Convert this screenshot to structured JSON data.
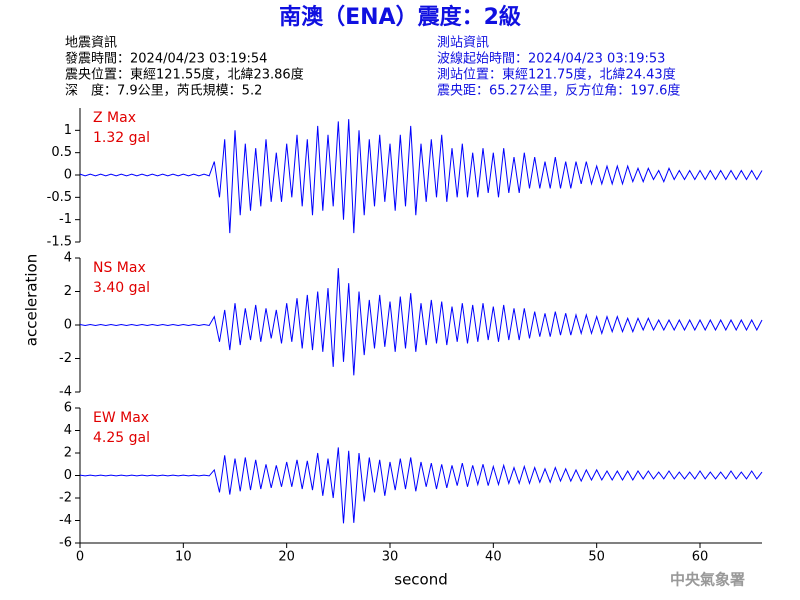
{
  "title": "南澳（ENA）震度：2級",
  "event_info": [
    "地震資訊",
    "發震時間：2024/04/23 03:19:54",
    "震央位置：東經121.55度，北緯23.86度",
    "深　度：7.9公里，芮氏規模：5.2"
  ],
  "station_info": [
    "測站資訊",
    "波線起始時間：2024/04/23 03:19:53",
    "測站位置：東經121.75度，北緯24.43度",
    "震央距：65.27公里，反方位角：197.6度"
  ],
  "agency": "中央氣象署",
  "chart_data": [
    {
      "type": "line",
      "label": "Z Max",
      "max_label": "1.32 gal",
      "label_color": "#e00000",
      "xlim": [
        0,
        66
      ],
      "ylim": [
        -1.5,
        1.5
      ],
      "yticks": [
        -1.5,
        -1,
        -0.5,
        0,
        0.5,
        1
      ],
      "x": [
        0,
        0.5,
        1,
        1.5,
        2,
        2.5,
        3,
        3.5,
        4,
        4.5,
        5,
        5.5,
        6,
        6.5,
        7,
        7.5,
        8,
        8.5,
        9,
        9.5,
        10,
        10.5,
        11,
        11.5,
        12,
        12.5,
        13,
        13.5,
        14,
        14.5,
        15,
        15.5,
        16,
        16.5,
        17,
        17.5,
        18,
        18.5,
        19,
        19.5,
        20,
        20.5,
        21,
        21.5,
        22,
        22.5,
        23,
        23.5,
        24,
        24.5,
        25,
        25.5,
        26,
        26.5,
        27,
        27.5,
        28,
        28.5,
        29,
        29.5,
        30,
        30.5,
        31,
        31.5,
        32,
        32.5,
        33,
        33.5,
        34,
        34.5,
        35,
        35.5,
        36,
        36.5,
        37,
        37.5,
        38,
        38.5,
        39,
        39.5,
        40,
        40.5,
        41,
        41.5,
        42,
        42.5,
        43,
        43.5,
        44,
        44.5,
        45,
        45.5,
        46,
        46.5,
        47,
        47.5,
        48,
        48.5,
        49,
        49.5,
        50,
        50.5,
        51,
        51.5,
        52,
        52.5,
        53,
        53.5,
        54,
        54.5,
        55,
        55.5,
        56,
        56.5,
        57,
        57.5,
        58,
        58.5,
        59,
        59.5,
        60,
        60.5,
        61,
        61.5,
        62,
        62.5,
        63,
        63.5,
        64,
        64.5,
        65,
        65.5,
        66
      ],
      "series": [
        {
          "color": "#0000ff",
          "values": [
            0.02,
            -0.02,
            0.02,
            -0.02,
            0.02,
            -0.02,
            0.02,
            -0.02,
            0.02,
            -0.02,
            0.02,
            -0.02,
            0.02,
            -0.02,
            0.02,
            -0.02,
            0.02,
            -0.02,
            0.02,
            -0.02,
            0.02,
            -0.02,
            0.02,
            -0.02,
            0.02,
            -0.02,
            0.3,
            -0.5,
            0.8,
            -1.3,
            1.0,
            -0.9,
            0.7,
            -0.8,
            0.6,
            -0.7,
            0.8,
            -0.6,
            0.5,
            -0.6,
            0.7,
            -0.5,
            0.9,
            -0.7,
            0.8,
            -0.9,
            1.1,
            -0.8,
            0.9,
            -0.7,
            1.2,
            -1.0,
            1.25,
            -1.3,
            1.0,
            -0.9,
            0.8,
            -0.7,
            0.9,
            -0.6,
            0.7,
            -0.8,
            0.9,
            -0.7,
            1.1,
            -0.9,
            0.7,
            -0.6,
            0.8,
            -0.5,
            0.9,
            -0.6,
            0.6,
            -0.5,
            0.7,
            -0.5,
            0.5,
            -0.5,
            0.6,
            -0.4,
            0.5,
            -0.5,
            0.6,
            -0.4,
            0.4,
            -0.4,
            0.5,
            -0.3,
            0.4,
            -0.3,
            0.3,
            -0.3,
            0.4,
            -0.3,
            0.3,
            -0.3,
            0.3,
            -0.2,
            0.3,
            -0.2,
            0.2,
            -0.2,
            0.2,
            -0.2,
            0.2,
            -0.2,
            0.2,
            -0.15,
            0.15,
            -0.15,
            0.15,
            -0.1,
            0.1,
            -0.15,
            0.15,
            -0.1,
            0.1,
            -0.1,
            0.1,
            -0.1,
            0.1,
            -0.1,
            0.1,
            -0.1,
            0.1,
            -0.1,
            0.1,
            -0.1,
            0.1,
            -0.1,
            0.1,
            -0.1,
            0.1
          ]
        }
      ]
    },
    {
      "type": "line",
      "label": "NS Max",
      "max_label": "3.40 gal",
      "label_color": "#e00000",
      "y_label": "acceleration",
      "xlim": [
        0,
        66
      ],
      "ylim": [
        -4,
        4
      ],
      "yticks": [
        -4,
        -2,
        0,
        2,
        4
      ],
      "x": [
        0,
        0.5,
        1,
        1.5,
        2,
        2.5,
        3,
        3.5,
        4,
        4.5,
        5,
        5.5,
        6,
        6.5,
        7,
        7.5,
        8,
        8.5,
        9,
        9.5,
        10,
        10.5,
        11,
        11.5,
        12,
        12.5,
        13,
        13.5,
        14,
        14.5,
        15,
        15.5,
        16,
        16.5,
        17,
        17.5,
        18,
        18.5,
        19,
        19.5,
        20,
        20.5,
        21,
        21.5,
        22,
        22.5,
        23,
        23.5,
        24,
        24.5,
        25,
        25.5,
        26,
        26.5,
        27,
        27.5,
        28,
        28.5,
        29,
        29.5,
        30,
        30.5,
        31,
        31.5,
        32,
        32.5,
        33,
        33.5,
        34,
        34.5,
        35,
        35.5,
        36,
        36.5,
        37,
        37.5,
        38,
        38.5,
        39,
        39.5,
        40,
        40.5,
        41,
        41.5,
        42,
        42.5,
        43,
        43.5,
        44,
        44.5,
        45,
        45.5,
        46,
        46.5,
        47,
        47.5,
        48,
        48.5,
        49,
        49.5,
        50,
        50.5,
        51,
        51.5,
        52,
        52.5,
        53,
        53.5,
        54,
        54.5,
        55,
        55.5,
        56,
        56.5,
        57,
        57.5,
        58,
        58.5,
        59,
        59.5,
        60,
        60.5,
        61,
        61.5,
        62,
        62.5,
        63,
        63.5,
        64,
        64.5,
        65,
        65.5,
        66
      ],
      "series": [
        {
          "color": "#0000ff",
          "values": [
            0.03,
            -0.03,
            0.03,
            -0.03,
            0.03,
            -0.03,
            0.03,
            -0.03,
            0.03,
            -0.03,
            0.03,
            -0.03,
            0.03,
            -0.03,
            0.03,
            -0.03,
            0.03,
            -0.03,
            0.03,
            -0.03,
            0.03,
            -0.03,
            0.03,
            -0.03,
            0.03,
            -0.03,
            0.5,
            -1.0,
            0.9,
            -1.5,
            1.3,
            -1.2,
            1.0,
            -0.9,
            1.2,
            -1.0,
            1.0,
            -0.8,
            0.9,
            -1.1,
            1.3,
            -1.0,
            1.6,
            -1.4,
            1.8,
            -1.5,
            2.0,
            -1.6,
            2.2,
            -2.5,
            3.4,
            -2.2,
            2.5,
            -3.0,
            2.0,
            -1.8,
            1.5,
            -1.4,
            1.8,
            -1.3,
            1.4,
            -1.6,
            1.7,
            -1.4,
            1.9,
            -1.6,
            1.3,
            -1.2,
            1.5,
            -1.1,
            1.4,
            -1.2,
            1.1,
            -1.0,
            1.3,
            -1.1,
            1.2,
            -1.0,
            1.3,
            -0.9,
            1.1,
            -1.0,
            1.2,
            -0.9,
            1.0,
            -0.9,
            1.0,
            -0.8,
            0.8,
            -0.7,
            0.7,
            -0.7,
            0.8,
            -0.6,
            0.7,
            -0.6,
            0.6,
            -0.5,
            0.6,
            -0.5,
            0.5,
            -0.5,
            0.5,
            -0.4,
            0.5,
            -0.4,
            0.4,
            -0.4,
            0.4,
            -0.3,
            0.4,
            -0.3,
            0.3,
            -0.3,
            0.3,
            -0.3,
            0.3,
            -0.3,
            0.3,
            -0.3,
            0.3,
            -0.3,
            0.3,
            -0.3,
            0.3,
            -0.3,
            0.3,
            -0.3,
            0.3,
            -0.3,
            0.3,
            -0.3,
            0.3
          ]
        }
      ]
    },
    {
      "type": "line",
      "label": "EW Max",
      "max_label": "4.25 gal",
      "label_color": "#e00000",
      "x_label": "second",
      "xlim": [
        0,
        66
      ],
      "xticks": [
        0,
        10,
        20,
        30,
        40,
        50,
        60
      ],
      "ylim": [
        -6,
        6
      ],
      "yticks": [
        -6,
        -4,
        -2,
        0,
        2,
        4,
        6
      ],
      "x": [
        0,
        0.5,
        1,
        1.5,
        2,
        2.5,
        3,
        3.5,
        4,
        4.5,
        5,
        5.5,
        6,
        6.5,
        7,
        7.5,
        8,
        8.5,
        9,
        9.5,
        10,
        10.5,
        11,
        11.5,
        12,
        12.5,
        13,
        13.5,
        14,
        14.5,
        15,
        15.5,
        16,
        16.5,
        17,
        17.5,
        18,
        18.5,
        19,
        19.5,
        20,
        20.5,
        21,
        21.5,
        22,
        22.5,
        23,
        23.5,
        24,
        24.5,
        25,
        25.5,
        26,
        26.5,
        27,
        27.5,
        28,
        28.5,
        29,
        29.5,
        30,
        30.5,
        31,
        31.5,
        32,
        32.5,
        33,
        33.5,
        34,
        34.5,
        35,
        35.5,
        36,
        36.5,
        37,
        37.5,
        38,
        38.5,
        39,
        39.5,
        40,
        40.5,
        41,
        41.5,
        42,
        42.5,
        43,
        43.5,
        44,
        44.5,
        45,
        45.5,
        46,
        46.5,
        47,
        47.5,
        48,
        48.5,
        49,
        49.5,
        50,
        50.5,
        51,
        51.5,
        52,
        52.5,
        53,
        53.5,
        54,
        54.5,
        55,
        55.5,
        56,
        56.5,
        57,
        57.5,
        58,
        58.5,
        59,
        59.5,
        60,
        60.5,
        61,
        61.5,
        62,
        62.5,
        63,
        63.5,
        64,
        64.5,
        65,
        65.5,
        66
      ],
      "series": [
        {
          "color": "#0000ff",
          "values": [
            0.04,
            -0.04,
            0.04,
            -0.04,
            0.04,
            -0.04,
            0.04,
            -0.04,
            0.04,
            -0.04,
            0.04,
            -0.04,
            0.04,
            -0.04,
            0.04,
            -0.04,
            0.04,
            -0.04,
            0.04,
            -0.04,
            0.04,
            -0.04,
            0.04,
            -0.04,
            0.04,
            -0.04,
            0.5,
            -1.5,
            1.8,
            -1.7,
            1.5,
            -1.4,
            1.6,
            -1.3,
            1.4,
            -1.2,
            1.0,
            -1.1,
            0.9,
            -1.0,
            1.2,
            -1.0,
            1.4,
            -1.2,
            1.3,
            -1.3,
            2.0,
            -1.8,
            1.5,
            -2.0,
            2.5,
            -4.25,
            2.2,
            -4.2,
            2.0,
            -2.3,
            1.6,
            -1.5,
            1.4,
            -1.8,
            1.2,
            -1.3,
            1.5,
            -1.2,
            1.6,
            -1.4,
            1.2,
            -1.0,
            1.1,
            -1.2,
            1.0,
            -1.1,
            0.9,
            -0.9,
            1.1,
            -1.0,
            0.9,
            -0.8,
            1.0,
            -0.9,
            0.8,
            -0.8,
            0.9,
            -0.7,
            0.7,
            -0.7,
            0.8,
            -0.7,
            0.7,
            -0.6,
            0.6,
            -0.6,
            0.7,
            -0.5,
            0.6,
            -0.5,
            0.5,
            -0.5,
            0.5,
            -0.4,
            0.5,
            -0.4,
            0.4,
            -0.4,
            0.4,
            -0.4,
            0.4,
            -0.4,
            0.4,
            -0.3,
            0.4,
            -0.3,
            0.3,
            -0.3,
            0.4,
            -0.3,
            0.3,
            -0.3,
            0.3,
            -0.3,
            0.4,
            -0.3,
            0.3,
            -0.3,
            0.3,
            -0.3,
            0.4,
            -0.3,
            0.3,
            -0.3,
            0.4,
            -0.3,
            0.3
          ]
        }
      ]
    }
  ]
}
